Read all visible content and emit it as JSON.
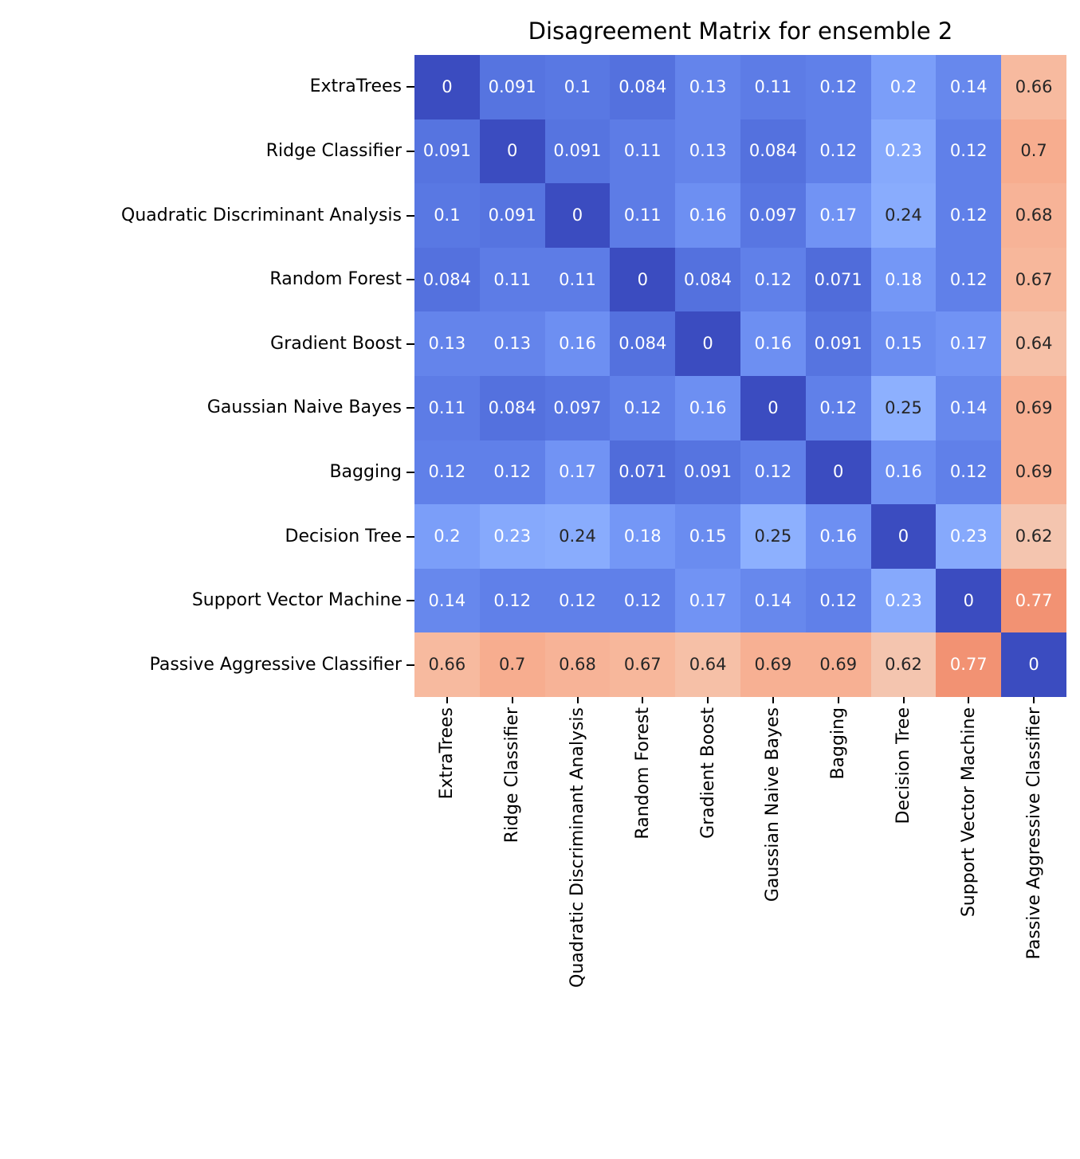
{
  "chart_data": {
    "type": "heatmap",
    "title": "Disagreement Matrix for ensemble 2",
    "categories": [
      "ExtraTrees",
      "Ridge Classifier",
      "Quadratic Discriminant Analysis",
      "Random Forest",
      "Gradient Boost",
      "Gaussian Naive Bayes",
      "Bagging",
      "Decision Tree",
      "Support Vector Machine",
      "Passive Aggressive Classifier"
    ],
    "matrix": [
      [
        "0",
        "0.091",
        "0.1",
        "0.084",
        "0.13",
        "0.11",
        "0.12",
        "0.2",
        "0.14",
        "0.66"
      ],
      [
        "0.091",
        "0",
        "0.091",
        "0.11",
        "0.13",
        "0.084",
        "0.12",
        "0.23",
        "0.12",
        "0.7"
      ],
      [
        "0.1",
        "0.091",
        "0",
        "0.11",
        "0.16",
        "0.097",
        "0.17",
        "0.24",
        "0.12",
        "0.68"
      ],
      [
        "0.084",
        "0.11",
        "0.11",
        "0",
        "0.084",
        "0.12",
        "0.071",
        "0.18",
        "0.12",
        "0.67"
      ],
      [
        "0.13",
        "0.13",
        "0.16",
        "0.084",
        "0",
        "0.16",
        "0.091",
        "0.15",
        "0.17",
        "0.64"
      ],
      [
        "0.11",
        "0.084",
        "0.097",
        "0.12",
        "0.16",
        "0",
        "0.12",
        "0.25",
        "0.14",
        "0.69"
      ],
      [
        "0.12",
        "0.12",
        "0.17",
        "0.071",
        "0.091",
        "0.12",
        "0",
        "0.16",
        "0.12",
        "0.69"
      ],
      [
        "0.2",
        "0.23",
        "0.24",
        "0.18",
        "0.15",
        "0.25",
        "0.16",
        "0",
        "0.23",
        "0.62"
      ],
      [
        "0.14",
        "0.12",
        "0.12",
        "0.12",
        "0.17",
        "0.14",
        "0.12",
        "0.23",
        "0",
        "0.77"
      ],
      [
        "0.66",
        "0.7",
        "0.68",
        "0.67",
        "0.64",
        "0.69",
        "0.69",
        "0.62",
        "0.77",
        "0"
      ]
    ],
    "colormap": "coolwarm",
    "vmin": 0,
    "vmax": 1,
    "legend": "none",
    "grid": "off",
    "annotation_colors": {
      "on_dark_cell": "#ffffff",
      "on_light_cell": "#262626"
    },
    "key_colors": {
      "min_blue": "#3b4cc0",
      "max_salmon": "#f09074"
    }
  }
}
